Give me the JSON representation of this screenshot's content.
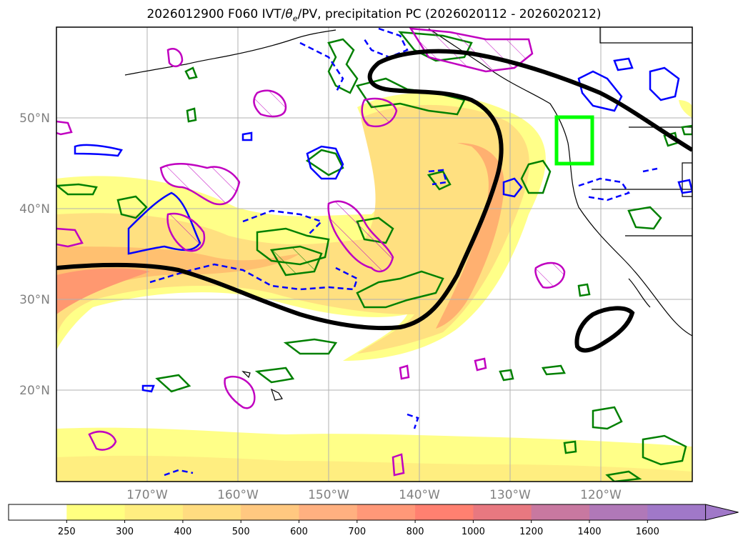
{
  "title": {
    "prefix": "2026012900 F060 IVT/",
    "theta": "θ",
    "theta_sub": "e",
    "suffix": "/PV, precipitation PC (2026020112 - 2026020212)"
  },
  "lat_labels": [
    "50°N",
    "40°N",
    "30°N",
    "20°N"
  ],
  "lon_labels": [
    "170°W",
    "160°W",
    "150°W",
    "140°W",
    "130°W",
    "120°W"
  ],
  "colorbar": {
    "ticks": [
      "250",
      "300",
      "400",
      "500",
      "600",
      "700",
      "800",
      "1000",
      "1200",
      "1400",
      "1600"
    ],
    "colors": [
      "#ffffff",
      "#ffff80",
      "#ffee80",
      "#ffdc80",
      "#ffc880",
      "#ffb080",
      "#ff9878",
      "#ff8070",
      "#e87880",
      "#c878a0",
      "#b078b8",
      "#a078c8"
    ]
  },
  "colors": {
    "ivt_contour": "#000000",
    "pv_positive": "#0000ff",
    "theta_e": "#008000",
    "precip_pc": "#c000c0",
    "target_box": "#00ff00"
  }
}
